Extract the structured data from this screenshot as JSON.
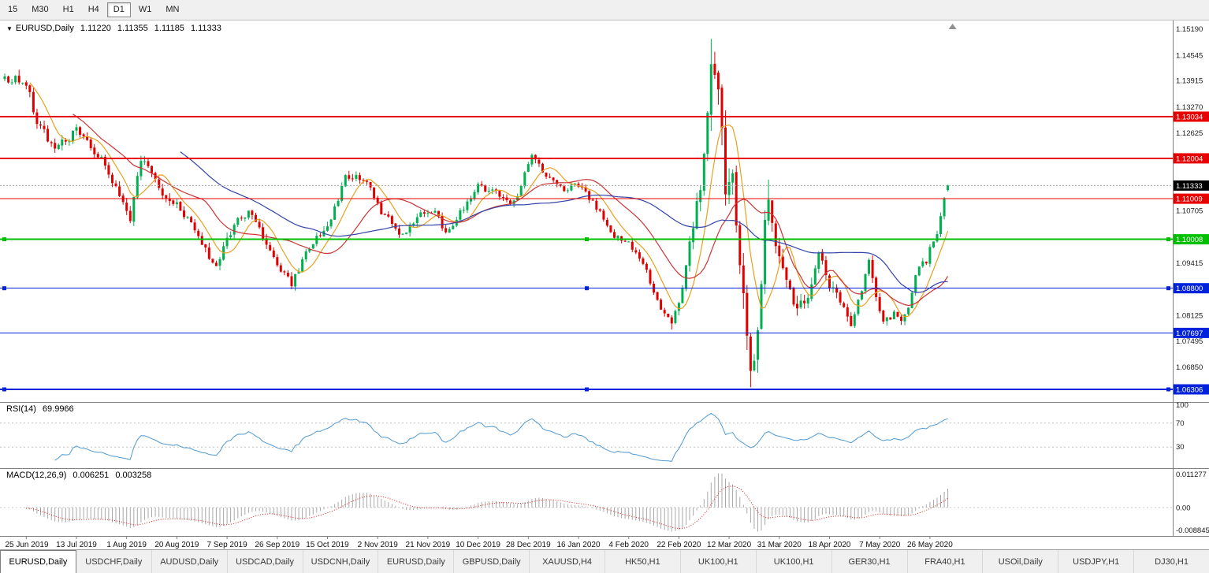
{
  "toolbar": {
    "items": [
      {
        "label": "15",
        "active": false
      },
      {
        "label": "M30",
        "active": false
      },
      {
        "label": "H1",
        "active": false
      },
      {
        "label": "H4",
        "active": false
      },
      {
        "label": "D1",
        "active": true
      },
      {
        "label": "W1",
        "active": false
      },
      {
        "label": "MN",
        "active": false
      }
    ]
  },
  "chart": {
    "symbol_label": "EURUSD,Daily",
    "open": "1.11220",
    "high": "1.11355",
    "low": "1.11185",
    "close": "1.11333",
    "colors": {
      "up": "#00b050",
      "down": "#e00000"
    },
    "price_axis": {
      "ticks": [
        {
          "label": "1.15190",
          "price": 1.1519
        },
        {
          "label": "1.14545",
          "price": 1.14545
        },
        {
          "label": "1.13915",
          "price": 1.13915
        },
        {
          "label": "1.13270",
          "price": 1.1327
        },
        {
          "label": "1.12625",
          "price": 1.12625
        },
        {
          "label": "1.11990",
          "price": 1.1199
        },
        {
          "label": "1.11350",
          "price": 1.1135
        },
        {
          "label": "1.10705",
          "price": 1.10705
        },
        {
          "label": "1.09415",
          "price": 1.09415
        },
        {
          "label": "1.08785",
          "price": 1.08785
        },
        {
          "label": "1.08125",
          "price": 1.08125
        },
        {
          "label": "1.07495",
          "price": 1.07495
        },
        {
          "label": "1.06850",
          "price": 1.0685
        }
      ]
    },
    "levels": [
      {
        "label": "1.13034",
        "price": 1.13034,
        "color": "#e80000",
        "width": 2,
        "handles": false
      },
      {
        "label": "1.12004",
        "price": 1.12004,
        "color": "#e80000",
        "width": 2,
        "handles": false
      },
      {
        "label": "1.11009",
        "price": 1.11009,
        "color": "#e80000",
        "width": 1,
        "handles": false
      },
      {
        "label": "1.10008",
        "price": 1.10008,
        "color": "#00c000",
        "width": 2,
        "handles": true
      },
      {
        "label": "1.08800",
        "price": 1.088,
        "color": "#0022dd",
        "width": 1,
        "handles": true
      },
      {
        "label": "1.07697",
        "price": 1.07697,
        "color": "#0022dd",
        "width": 1,
        "handles": false
      },
      {
        "label": "1.06306",
        "price": 1.06306,
        "color": "#0022dd",
        "width": 2,
        "handles": true
      }
    ],
    "current_price": {
      "label": "1.11333",
      "price": 1.11333,
      "badge_color": "#000000"
    }
  },
  "chart_data": {
    "type": "candlestick",
    "symbol": "EURUSD",
    "timeframe": "Daily",
    "candles_count": 264,
    "price_range": {
      "top": 1.15406,
      "bottom": 1.05994
    },
    "x_ticks": {
      "labels": [
        "25 Jun 2019",
        "13 Jul 2019",
        "1 Aug 2019",
        "20 Aug 2019",
        "7 Sep 2019",
        "26 Sep 2019",
        "15 Oct 2019",
        "2 Nov 2019",
        "21 Nov 2019",
        "10 Dec 2019",
        "28 Dec 2019",
        "16 Jan 2020",
        "4 Feb 2020",
        "22 Feb 2020",
        "12 Mar 2020",
        "31 Mar 2020",
        "18 Apr 2020",
        "7 May 2020",
        "26 May 2020"
      ],
      "first_tick_day": 6,
      "tick_interval_days": 14
    },
    "path_waypoints": [
      [
        0,
        1.14,
        0.0032
      ],
      [
        6,
        1.1385,
        0.0032
      ],
      [
        9,
        1.129,
        0.003
      ],
      [
        14,
        1.122,
        0.0028
      ],
      [
        20,
        1.127,
        0.0025
      ],
      [
        27,
        1.1195,
        0.0024
      ],
      [
        32,
        1.1105,
        0.0028
      ],
      [
        35,
        1.1055,
        0.0032
      ],
      [
        38,
        1.12,
        0.003
      ],
      [
        44,
        1.111,
        0.0026
      ],
      [
        48,
        1.109,
        0.0024
      ],
      [
        54,
        1.101,
        0.0024
      ],
      [
        59,
        1.093,
        0.0026
      ],
      [
        64,
        1.104,
        0.0026
      ],
      [
        68,
        1.107,
        0.0024
      ],
      [
        72,
        1.101,
        0.0022
      ],
      [
        76,
        1.0935,
        0.0022
      ],
      [
        80,
        1.089,
        0.0022
      ],
      [
        85,
        1.0985,
        0.0024
      ],
      [
        90,
        1.103,
        0.0024
      ],
      [
        95,
        1.115,
        0.0024
      ],
      [
        100,
        1.1155,
        0.0022
      ],
      [
        105,
        1.107,
        0.002
      ],
      [
        111,
        1.101,
        0.002
      ],
      [
        116,
        1.106,
        0.002
      ],
      [
        120,
        1.1075,
        0.002
      ],
      [
        123,
        1.1015,
        0.0018
      ],
      [
        128,
        1.108,
        0.0018
      ],
      [
        132,
        1.113,
        0.0018
      ],
      [
        137,
        1.1115,
        0.0018
      ],
      [
        142,
        1.109,
        0.0018
      ],
      [
        147,
        1.121,
        0.002
      ],
      [
        151,
        1.116,
        0.0018
      ],
      [
        156,
        1.1125,
        0.0016
      ],
      [
        160,
        1.1135,
        0.0016
      ],
      [
        165,
        1.108,
        0.0016
      ],
      [
        170,
        1.101,
        0.0016
      ],
      [
        174,
        1.0995,
        0.0016
      ],
      [
        179,
        1.092,
        0.0017
      ],
      [
        183,
        1.0825,
        0.0018
      ],
      [
        186,
        1.079,
        0.0018
      ],
      [
        189,
        1.087,
        0.0026
      ],
      [
        191,
        1.099,
        0.0035
      ],
      [
        194,
        1.114,
        0.0048
      ],
      [
        196,
        1.132,
        0.0068
      ],
      [
        197,
        1.143,
        0.0085
      ],
      [
        199,
        1.134,
        0.009
      ],
      [
        201,
        1.114,
        0.0095
      ],
      [
        202,
        1.111,
        0.009
      ],
      [
        203,
        1.118,
        0.0085
      ],
      [
        205,
        1.095,
        0.0088
      ],
      [
        207,
        1.075,
        0.0085
      ],
      [
        208,
        1.067,
        0.008
      ],
      [
        209,
        1.07,
        0.0075
      ],
      [
        211,
        1.088,
        0.0068
      ],
      [
        212,
        1.103,
        0.0062
      ],
      [
        213,
        1.11,
        0.0056
      ],
      [
        215,
        1.1,
        0.005
      ],
      [
        218,
        1.089,
        0.0046
      ],
      [
        221,
        1.082,
        0.0042
      ],
      [
        224,
        1.087,
        0.0038
      ],
      [
        227,
        1.096,
        0.0033
      ],
      [
        230,
        1.089,
        0.003
      ],
      [
        233,
        1.085,
        0.0028
      ],
      [
        236,
        1.079,
        0.0027
      ],
      [
        239,
        1.088,
        0.0027
      ],
      [
        241,
        1.0945,
        0.0026
      ],
      [
        243,
        1.086,
        0.0025
      ],
      [
        245,
        1.0795,
        0.0023
      ],
      [
        248,
        1.0815,
        0.0021
      ],
      [
        250,
        1.08,
        0.002
      ],
      [
        252,
        1.0825,
        0.002
      ],
      [
        254,
        1.0915,
        0.0021
      ],
      [
        256,
        1.095,
        0.0019
      ],
      [
        257,
        1.094,
        0.0018
      ],
      [
        258,
        1.0985,
        0.0018
      ],
      [
        260,
        1.101,
        0.0018
      ],
      [
        262,
        1.11,
        0.002
      ],
      [
        263,
        1.1133,
        0.0016
      ]
    ],
    "spikes": [
      {
        "day": 80,
        "low": 1.0879
      },
      {
        "day": 186,
        "low": 1.0778
      },
      {
        "day": 197,
        "high": 1.1495
      },
      {
        "day": 208,
        "low": 1.0636
      },
      {
        "day": 213,
        "high": 1.1148
      }
    ],
    "last_candle": {
      "open": 1.1122,
      "high": 1.11355,
      "low": 1.11185,
      "close": 1.11333
    },
    "moving_averages": [
      {
        "period": 8,
        "color": "#e8a020"
      },
      {
        "period": 20,
        "color": "#cc3333"
      },
      {
        "period": 50,
        "color": "#3344aa"
      }
    ],
    "indicators": {
      "rsi": {
        "label": "RSI(14)",
        "value": "69.9966",
        "period": 14,
        "levels": [
          100,
          70,
          30
        ],
        "color": "#4f9ad2"
      },
      "macd": {
        "label": "MACD(12,26,9)",
        "value": "0.006251",
        "signal_value": "0.003258",
        "fast": 12,
        "slow": 26,
        "signal": 9,
        "axis_top": "0.011277",
        "axis_zero": "0.00",
        "axis_bottom": "-0.008845",
        "hist_color": "#a8a8a8",
        "signal_color": "#e02020"
      }
    }
  },
  "tabs": {
    "items": [
      {
        "label": "EURUSD,Daily",
        "active": true
      },
      {
        "label": "USDCHF,Daily",
        "active": false
      },
      {
        "label": "AUDUSD,Daily",
        "active": false
      },
      {
        "label": "USDCAD,Daily",
        "active": false
      },
      {
        "label": "USDCNH,Daily",
        "active": false
      },
      {
        "label": "EURUSD,Daily",
        "active": false
      },
      {
        "label": "GBPUSD,Daily",
        "active": false
      },
      {
        "label": "XAUUSD,H4",
        "active": false
      },
      {
        "label": "HK50,H1",
        "active": false
      },
      {
        "label": "UK100,H1",
        "active": false
      },
      {
        "label": "UK100,H1",
        "active": false
      },
      {
        "label": "GER30,H1",
        "active": false
      },
      {
        "label": "FRA40,H1",
        "active": false
      },
      {
        "label": "USOil,Daily",
        "active": false
      },
      {
        "label": "USDJPY,H1",
        "active": false
      },
      {
        "label": "DJ30,H1",
        "active": false
      }
    ]
  }
}
